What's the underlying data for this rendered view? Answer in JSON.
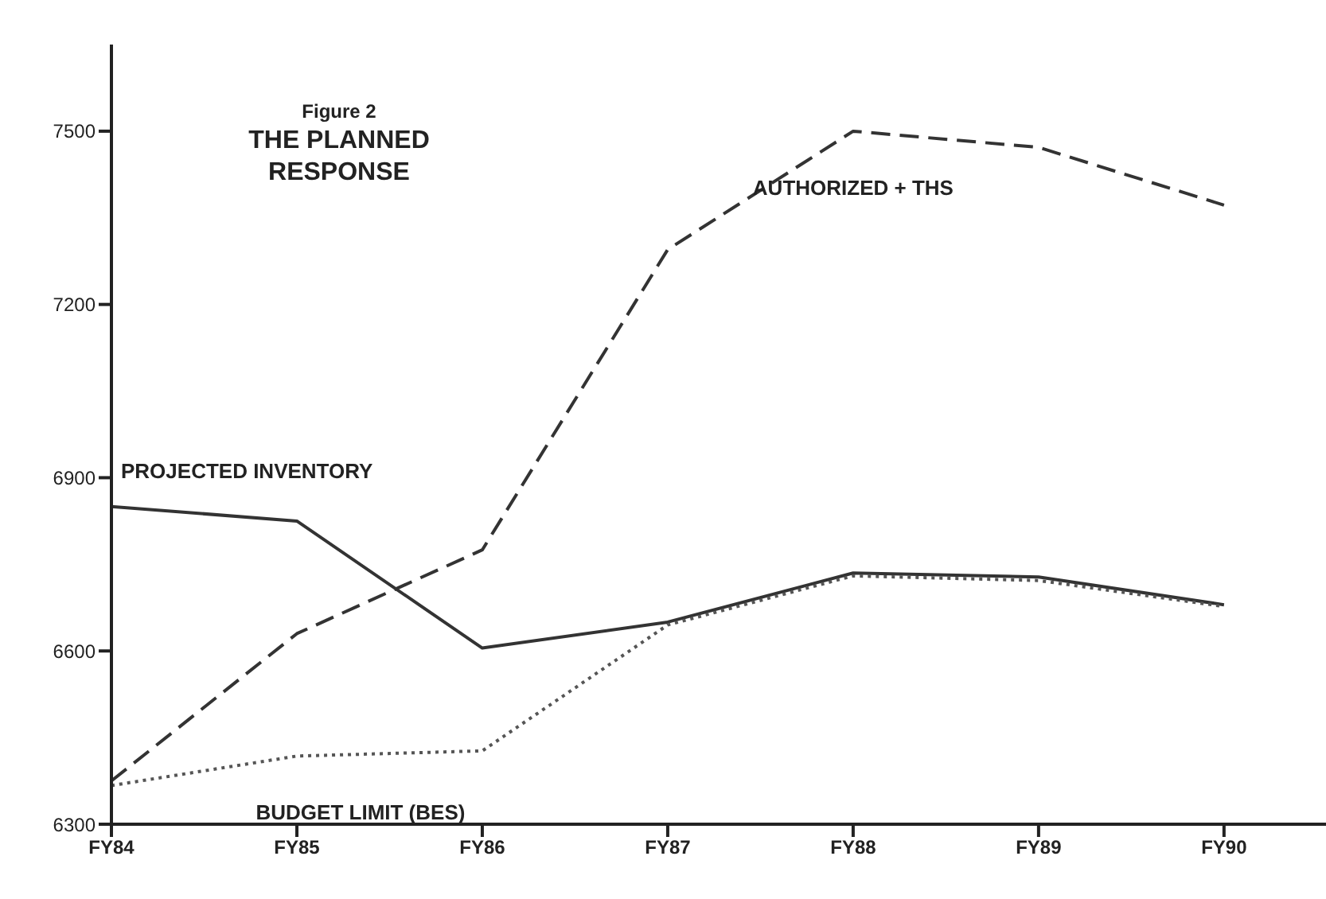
{
  "chart_data": {
    "type": "line",
    "title": "Figure 2",
    "subtitle": "THE PLANNED RESPONSE",
    "categories": [
      "FY84",
      "FY85",
      "FY86",
      "FY87",
      "FY88",
      "FY89",
      "FY90"
    ],
    "series": [
      {
        "name": "PROJECTED INVENTORY",
        "color": "#333333",
        "line_style": "solid",
        "values": [
          6850,
          6825,
          6605,
          6650,
          6735,
          6728,
          6680
        ]
      },
      {
        "name": "AUTHORIZED + THS",
        "color": "#333333",
        "line_style": "dashed",
        "values": [
          6375,
          6630,
          6775,
          7295,
          7500,
          7472,
          7372
        ]
      },
      {
        "name": "BUDGET LIMIT (BES)",
        "color": "#555555",
        "line_style": "dotted",
        "values": [
          6367,
          6418,
          6427,
          6645,
          6730,
          6722,
          6677
        ]
      }
    ],
    "ylim": [
      6300,
      7650
    ],
    "yticks": [
      6300,
      6600,
      6900,
      7200,
      7500
    ],
    "grid": false,
    "legend": false,
    "marker": "none"
  }
}
